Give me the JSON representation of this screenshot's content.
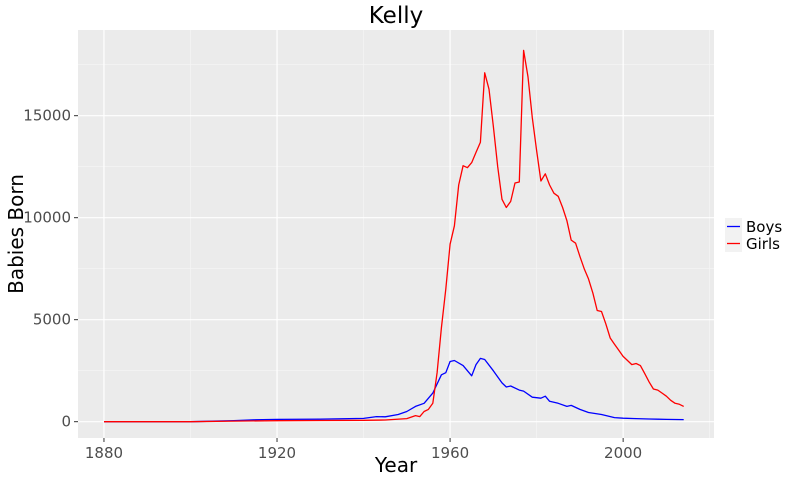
{
  "chart_data": {
    "type": "line",
    "title": "Kelly",
    "xlabel": "Year",
    "ylabel": "Babies Born",
    "xlim": [
      1874,
      2021
    ],
    "ylim": [
      -800,
      19200
    ],
    "x_ticks": [
      1880,
      1920,
      1960,
      2000
    ],
    "y_ticks": [
      0,
      5000,
      10000,
      15000
    ],
    "x_tick_labels": [
      "1880",
      "1920",
      "1960",
      "2000"
    ],
    "y_tick_labels": [
      "0",
      "5000",
      "10000",
      "15000"
    ],
    "grid": true,
    "legend_position": "right",
    "series": [
      {
        "name": "Boys",
        "color": "#0000ff",
        "points": [
          [
            1880,
            0
          ],
          [
            1900,
            0
          ],
          [
            1910,
            50
          ],
          [
            1915,
            90
          ],
          [
            1920,
            110
          ],
          [
            1930,
            120
          ],
          [
            1940,
            160
          ],
          [
            1943,
            250
          ],
          [
            1945,
            240
          ],
          [
            1948,
            350
          ],
          [
            1950,
            500
          ],
          [
            1952,
            750
          ],
          [
            1954,
            900
          ],
          [
            1956,
            1400
          ],
          [
            1958,
            2300
          ],
          [
            1959,
            2400
          ],
          [
            1960,
            2950
          ],
          [
            1961,
            3000
          ],
          [
            1963,
            2750
          ],
          [
            1965,
            2250
          ],
          [
            1966,
            2800
          ],
          [
            1967,
            3100
          ],
          [
            1968,
            3050
          ],
          [
            1970,
            2500
          ],
          [
            1972,
            1900
          ],
          [
            1973,
            1700
          ],
          [
            1974,
            1750
          ],
          [
            1976,
            1550
          ],
          [
            1977,
            1500
          ],
          [
            1979,
            1200
          ],
          [
            1981,
            1150
          ],
          [
            1982,
            1250
          ],
          [
            1983,
            1000
          ],
          [
            1985,
            900
          ],
          [
            1987,
            750
          ],
          [
            1988,
            800
          ],
          [
            1990,
            600
          ],
          [
            1992,
            450
          ],
          [
            1995,
            350
          ],
          [
            1998,
            200
          ],
          [
            2000,
            170
          ],
          [
            2003,
            150
          ],
          [
            2006,
            130
          ],
          [
            2008,
            120
          ],
          [
            2010,
            110
          ],
          [
            2014,
            100
          ]
        ]
      },
      {
        "name": "Girls",
        "color": "#ff0000",
        "points": [
          [
            1880,
            0
          ],
          [
            1900,
            0
          ],
          [
            1910,
            30
          ],
          [
            1920,
            50
          ],
          [
            1930,
            60
          ],
          [
            1940,
            70
          ],
          [
            1945,
            80
          ],
          [
            1950,
            150
          ],
          [
            1952,
            300
          ],
          [
            1953,
            250
          ],
          [
            1954,
            500
          ],
          [
            1955,
            600
          ],
          [
            1956,
            900
          ],
          [
            1957,
            2400
          ],
          [
            1958,
            4600
          ],
          [
            1959,
            6500
          ],
          [
            1960,
            8700
          ],
          [
            1961,
            9600
          ],
          [
            1962,
            11600
          ],
          [
            1963,
            12550
          ],
          [
            1964,
            12450
          ],
          [
            1965,
            12700
          ],
          [
            1966,
            13200
          ],
          [
            1967,
            13700
          ],
          [
            1968,
            17100
          ],
          [
            1969,
            16300
          ],
          [
            1970,
            14500
          ],
          [
            1971,
            12500
          ],
          [
            1972,
            10900
          ],
          [
            1973,
            10500
          ],
          [
            1974,
            10800
          ],
          [
            1975,
            11700
          ],
          [
            1976,
            11750
          ],
          [
            1977,
            18200
          ],
          [
            1978,
            16900
          ],
          [
            1979,
            14900
          ],
          [
            1980,
            13300
          ],
          [
            1981,
            11800
          ],
          [
            1982,
            12150
          ],
          [
            1983,
            11600
          ],
          [
            1984,
            11200
          ],
          [
            1985,
            11050
          ],
          [
            1986,
            10500
          ],
          [
            1987,
            9850
          ],
          [
            1988,
            8900
          ],
          [
            1989,
            8750
          ],
          [
            1990,
            8100
          ],
          [
            1991,
            7500
          ],
          [
            1992,
            7000
          ],
          [
            1993,
            6300
          ],
          [
            1994,
            5450
          ],
          [
            1995,
            5400
          ],
          [
            1996,
            4800
          ],
          [
            1997,
            4100
          ],
          [
            1998,
            3800
          ],
          [
            1999,
            3500
          ],
          [
            2000,
            3200
          ],
          [
            2001,
            3000
          ],
          [
            2002,
            2800
          ],
          [
            2003,
            2850
          ],
          [
            2004,
            2750
          ],
          [
            2005,
            2350
          ],
          [
            2006,
            1950
          ],
          [
            2007,
            1600
          ],
          [
            2008,
            1550
          ],
          [
            2009,
            1400
          ],
          [
            2010,
            1250
          ],
          [
            2011,
            1050
          ],
          [
            2012,
            900
          ],
          [
            2013,
            850
          ],
          [
            2014,
            750
          ]
        ]
      }
    ]
  }
}
